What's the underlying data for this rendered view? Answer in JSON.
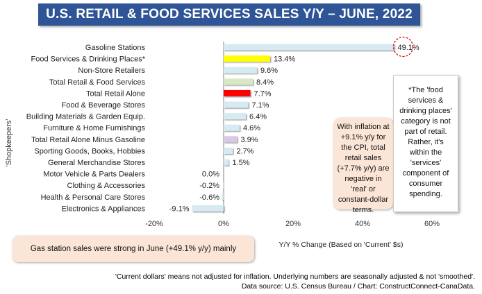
{
  "title": "U.S. RETAIL & FOOD SERVICES SALES Y/Y – JUNE, 2022",
  "y_axis_label": "'Shopkeepers'",
  "x_axis_title": "Y/Y % Change (Based  on 'Current' $s)",
  "callouts": {
    "inflation": "With inflation at +9.1% y/y for the CPI, total retail sales (+7.7% y/y) are negative in 'real' or constant-dollar terms.",
    "food_services": "*The 'food services & drinking places' category is not part of retail. Rather, it's within the 'services' component of consumer spending.",
    "gas_stations": "Gas station sales were strong in June (+49.1% y/y) mainly"
  },
  "footnotes": {
    "line1": "'Current dollars' means not adjusted for inflation. Underlying numbers are seasonally adjusted & not 'smoothed'.",
    "line2": "Data source: U.S. Census Bureau / Chart: ConstructConnect-CanaData."
  },
  "colors": {
    "banner": "#2f5597",
    "default_bar": "#d6eaf2",
    "food_services_bar": "#ffff00",
    "total_retail_food_bar": "#d9e8c4",
    "total_retail_alone_bar": "#ff0000",
    "minus_gasoline_bar": "#d9c8e6",
    "highlight_circle": "#e00000"
  },
  "chart_data": {
    "type": "bar",
    "orientation": "horizontal",
    "categories": [
      "Gasoline Stations",
      "Food Services & Drinking Places*",
      "Non-Store Retailers",
      "Total Retail & Food Services",
      "Total Retail Alone",
      "Food & Beverage Stores",
      "Building Materials & Garden Equip.",
      "Furniture & Home Furnishings",
      "Total Retail Alone Minus Gasoline",
      "Sporting Goods, Books, Hobbies",
      "General Merchandise Stores",
      "Motor Vehicle & Parts Dealers",
      "Clothing & Accessories",
      "Health & Personal Care Stores",
      "Electronics & Appliances"
    ],
    "values": [
      49.1,
      13.4,
      9.6,
      8.4,
      7.7,
      7.1,
      6.4,
      4.6,
      3.9,
      2.7,
      1.5,
      0.0,
      -0.2,
      -0.6,
      -9.1
    ],
    "value_labels": [
      "49.1%",
      "13.4%",
      "9.6%",
      "8.4%",
      "7.7%",
      "7.1%",
      "6.4%",
      "4.6%",
      "3.9%",
      "2.7%",
      "1.5%",
      "0.0%",
      "-0.2%",
      "-0.6%",
      "-9.1%"
    ],
    "bar_colors": [
      "#d6eaf2",
      "#ffff00",
      "#d6eaf2",
      "#d9e8c4",
      "#ff0000",
      "#d6eaf2",
      "#d6eaf2",
      "#d6eaf2",
      "#d9c8e6",
      "#d6eaf2",
      "#d6eaf2",
      "#d6eaf2",
      "#d6eaf2",
      "#d6eaf2",
      "#d6eaf2"
    ],
    "highlighted_category": "Gasoline Stations",
    "x_ticks": [
      -20,
      0,
      20,
      40,
      60
    ],
    "x_tick_labels": [
      "-20%",
      "0%",
      "20%",
      "40%",
      "60%"
    ],
    "xlim": [
      -20,
      60
    ],
    "grid": false
  }
}
